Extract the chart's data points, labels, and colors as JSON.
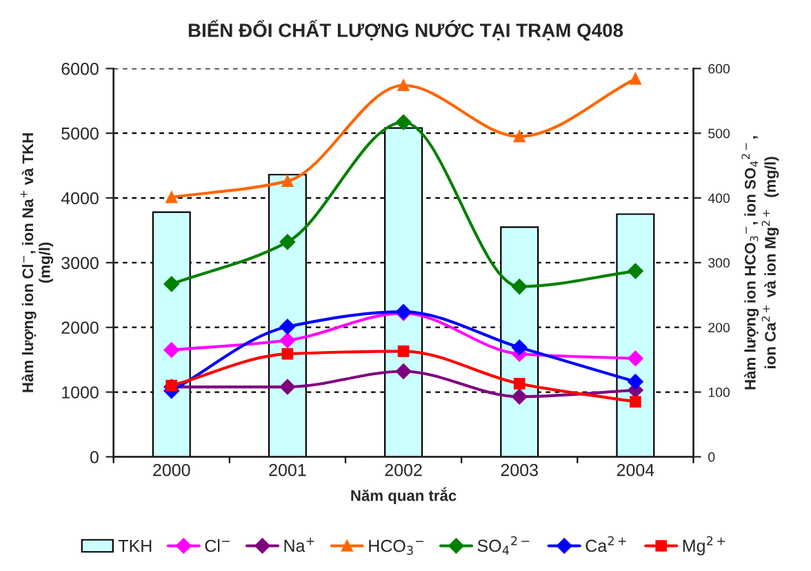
{
  "chart_data": {
    "type": "bar",
    "title": "BIẾN ĐỔI CHẤT LƯỢNG NƯỚC TẠI TRẠM Q408",
    "xlabel": "Năm quan trắc",
    "ylabel": "Hàm lượng ion Cl$^{−}$, ion Na$^{+}$ và TKH\n(mg/l)",
    "y2label": "Hàm lượng ion HCO$_{3}$$^{−}$, ion SO$_{4}$$^{2−}$,\nion Ca$^{2+}$ và ion Mg$^{2+}$  (mg/l)",
    "categories": [
      "2000",
      "2001",
      "2002",
      "2003",
      "2004"
    ],
    "series": [
      {
        "name": "TKH",
        "color": "#ccffff",
        "values": [
          3780,
          4360,
          5080,
          3550,
          3750
        ]
      },
      {
        "name": "Cl$^{−}$",
        "type": "line",
        "marker": "diamond",
        "color": "#ff00ff",
        "values": [
          1650,
          1800,
          2220,
          1590,
          1520
        ]
      },
      {
        "name": "Na$^{+}$",
        "type": "line",
        "marker": "diamond",
        "color": "#800080",
        "values": [
          1080,
          1080,
          1320,
          930,
          1030
        ]
      },
      {
        "name": "HCO$_{3}$$^{−}$",
        "type": "line",
        "axis": "y2",
        "marker": "triangle",
        "color": "#ff6600",
        "values": [
          401,
          426,
          574,
          495,
          584
        ]
      },
      {
        "name": "SO$_{4}$$^{2−}$",
        "type": "line",
        "axis": "y2",
        "marker": "diamond",
        "color": "#008000",
        "values": [
          267,
          332,
          517,
          263,
          287
        ]
      },
      {
        "name": "Ca$^{2+}$",
        "type": "line",
        "axis": "y2",
        "marker": "diamond",
        "color": "#0000ff",
        "values": [
          102,
          201,
          224,
          169,
          116
        ]
      },
      {
        "name": "Mg$^{2+}$",
        "type": "line",
        "axis": "y2",
        "marker": "square",
        "color": "#ff0000",
        "values": [
          110,
          159,
          163,
          113,
          85
        ]
      }
    ],
    "ylim": [
      0,
      6000
    ],
    "yticks": [
      0,
      1000,
      2000,
      3000,
      4000,
      5000,
      6000
    ],
    "y2lim": [
      0,
      600
    ],
    "y2ticks": [
      0,
      100,
      200,
      300,
      400,
      500,
      600
    ],
    "grid": "y",
    "legend": "bottom",
    "line_style": "solid"
  }
}
